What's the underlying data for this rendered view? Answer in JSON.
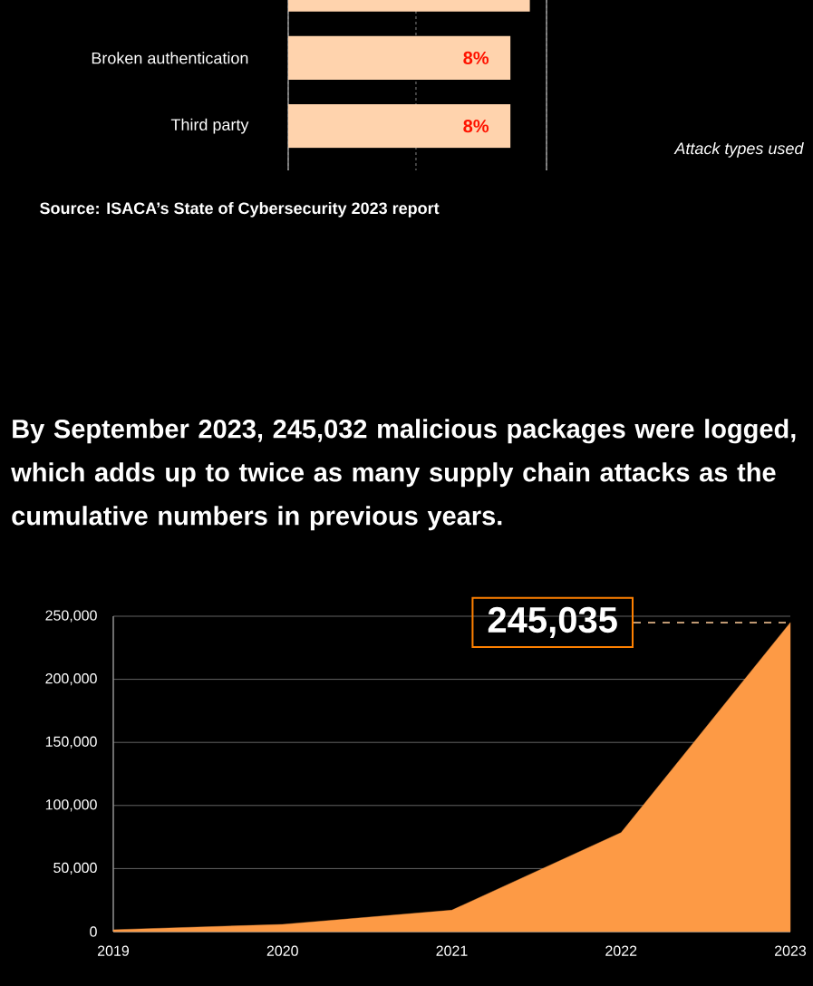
{
  "chart_data": [
    {
      "type": "bar",
      "orientation": "horizontal",
      "categories": [
        null,
        "Broken authentication",
        "Third party"
      ],
      "values": [
        8.7,
        8,
        8
      ],
      "value_labels": [
        null,
        "8%",
        "8%"
      ],
      "color": "#ffd3ad",
      "xlim": [
        0,
        9.3
      ],
      "xticks": [
        {
          "value": 0,
          "label": null
        },
        {
          "value": 4.6,
          "label": null
        },
        {
          "value": 9.3,
          "label": null
        }
      ],
      "grid": "x",
      "tick_labels": "y",
      "annotations": [
        "Attack types used",
        "Source: ISACA’s State of Cybersecurity 2023 report"
      ]
    },
    {
      "type": "area",
      "title": "By September 2023, 245,032 malicious packages were logged, which adds up to twice as many supply chain attacks as the cumulative numbers in previous years.",
      "x": [
        2019,
        2020,
        2021,
        2022,
        2023
      ],
      "values": [
        1500,
        5700,
        17000,
        78500,
        245035
      ],
      "color": "#fd9a45",
      "xlim": [
        2019,
        2023
      ],
      "ylim": [
        0,
        250000
      ],
      "xticks": [
        2019,
        2020,
        2021,
        2022,
        2023
      ],
      "yticks": [
        0,
        {
          "value": 50000,
          "label": "50,000"
        },
        {
          "value": 100000,
          "label": "100,000"
        },
        {
          "value": 150000,
          "label": "150,000"
        },
        {
          "value": 200000,
          "label": "200,000"
        },
        {
          "value": 250000,
          "label": "250,000"
        }
      ],
      "grid": "y",
      "annotations": [
        {
          "text": "245,035",
          "x": 2023,
          "y": 245035
        }
      ]
    }
  ]
}
